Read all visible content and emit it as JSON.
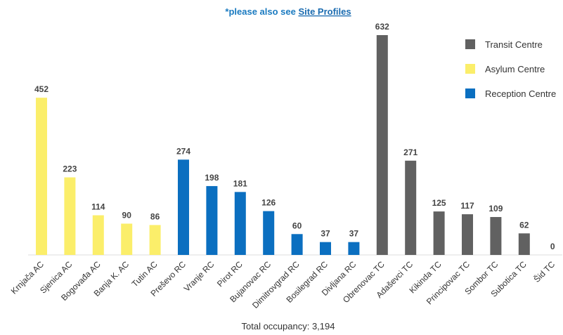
{
  "chart_data": {
    "type": "bar",
    "annotation": {
      "text": "*please also see ",
      "link": "Site Profiles"
    },
    "footer": "Total occupancy: 3,194",
    "categories": [
      "Krnjača AC",
      "Sjenica AC",
      "Bogovađa AC",
      "Banja K. AC",
      "Tutin AC",
      "Preševo RC",
      "Vranje RC",
      "Pirot RC",
      "Bujanovac RC",
      "Dimitrovgrad RC",
      "Bosilegrad RC",
      "Divljana RC",
      "Obrenovac TC",
      "Adaševci TC",
      "Kikinda TC",
      "Principovac TC",
      "Sombor TC",
      "Subotica TC",
      "Šid TC"
    ],
    "series": [
      {
        "name": "Transit Centre",
        "color": "#616161",
        "values": [
          null,
          null,
          null,
          null,
          null,
          null,
          null,
          null,
          null,
          null,
          null,
          null,
          632,
          271,
          125,
          117,
          109,
          62,
          0
        ]
      },
      {
        "name": "Asylum Centre",
        "color": "#fbee6a",
        "values": [
          452,
          223,
          114,
          90,
          86,
          null,
          null,
          null,
          null,
          null,
          null,
          null,
          null,
          null,
          null,
          null,
          null,
          null,
          null
        ]
      },
      {
        "name": "Reception Centre",
        "color": "#0b6fc0",
        "values": [
          null,
          null,
          null,
          null,
          null,
          274,
          198,
          181,
          126,
          60,
          37,
          37,
          null,
          null,
          null,
          null,
          null,
          null,
          null
        ]
      }
    ],
    "ylim": [
      0,
      632
    ]
  }
}
